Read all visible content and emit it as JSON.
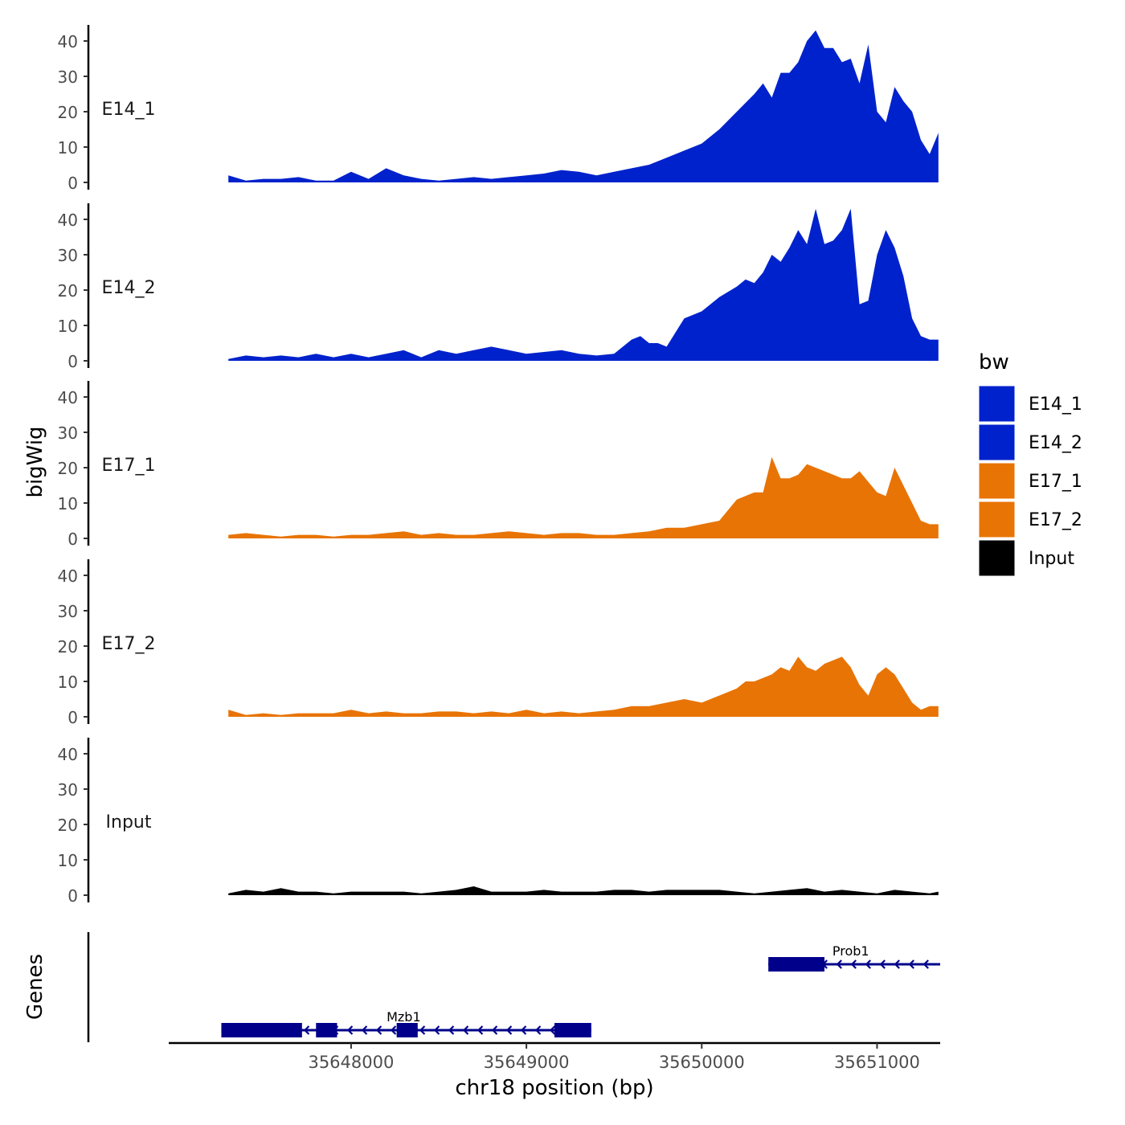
{
  "chart_data": {
    "type": "area",
    "title": "",
    "ylabel": "bigWig",
    "xlabel": "chr18 position (bp)",
    "genes_label": "Genes",
    "xlim": [
      35646960,
      35651360
    ],
    "ylim": [
      0,
      44
    ],
    "yticks": [
      0,
      10,
      20,
      30,
      40
    ],
    "xticks": [
      35648000,
      35649000,
      35650000,
      35651000
    ],
    "xtick_labels": [
      "35648000",
      "35649000",
      "35650000",
      "35651000"
    ],
    "legend": {
      "title": "bw",
      "position": "right",
      "entries": [
        {
          "label": "E14_1",
          "color": "#0022CC"
        },
        {
          "label": "E14_2",
          "color": "#0022CC"
        },
        {
          "label": "E17_1",
          "color": "#E87405"
        },
        {
          "label": "E17_2",
          "color": "#E87405"
        },
        {
          "label": "Input",
          "color": "#000000"
        }
      ]
    },
    "series": [
      {
        "name": "E14_1",
        "color": "#0022CC",
        "x": [
          35647300,
          35647400,
          35647500,
          35647600,
          35647700,
          35647800,
          35647900,
          35648000,
          35648100,
          35648200,
          35648300,
          35648400,
          35648500,
          35648600,
          35648700,
          35648800,
          35648900,
          35649000,
          35649100,
          35649200,
          35649300,
          35649400,
          35649500,
          35649600,
          35649700,
          35649800,
          35649900,
          35650000,
          35650100,
          35650200,
          35650300,
          35650350,
          35650400,
          35650450,
          35650500,
          35650550,
          35650600,
          35650650,
          35650700,
          35650750,
          35650800,
          35650850,
          35650900,
          35650950,
          35651000,
          35651050,
          35651100,
          35651150,
          35651200,
          35651250,
          35651300,
          35651350
        ],
        "values": [
          2,
          0.5,
          1,
          1,
          1.5,
          0.5,
          0.5,
          3,
          1,
          4,
          2,
          1,
          0.5,
          1,
          1.5,
          1,
          1.5,
          2,
          2.5,
          3.5,
          3,
          2,
          3,
          4,
          5,
          7,
          9,
          11,
          15,
          20,
          25,
          28,
          24,
          31,
          31,
          34,
          40,
          43,
          38,
          38,
          34,
          35,
          28,
          39,
          20,
          17,
          27,
          23,
          20,
          12,
          8,
          14
        ]
      },
      {
        "name": "E14_2",
        "color": "#0022CC",
        "x": [
          35647300,
          35647400,
          35647500,
          35647600,
          35647700,
          35647800,
          35647900,
          35648000,
          35648100,
          35648200,
          35648300,
          35648400,
          35648500,
          35648600,
          35648700,
          35648800,
          35648900,
          35649000,
          35649100,
          35649200,
          35649300,
          35649400,
          35649500,
          35649600,
          35649650,
          35649700,
          35649750,
          35649800,
          35649900,
          35650000,
          35650100,
          35650200,
          35650250,
          35650300,
          35650350,
          35650400,
          35650450,
          35650500,
          35650550,
          35650600,
          35650650,
          35650700,
          35650750,
          35650800,
          35650850,
          35650900,
          35650950,
          35651000,
          35651050,
          35651100,
          35651150,
          35651200,
          35651250,
          35651300,
          35651350
        ],
        "values": [
          0.5,
          1.5,
          1,
          1.5,
          1,
          2,
          1,
          2,
          1,
          2,
          3,
          1,
          3,
          2,
          3,
          4,
          3,
          2,
          2.5,
          3,
          2,
          1.5,
          2,
          6,
          7,
          5,
          5,
          4,
          12,
          14,
          18,
          21,
          23,
          22,
          25,
          30,
          28,
          32,
          37,
          33,
          43,
          33,
          34,
          37,
          43,
          16,
          17,
          30,
          37,
          32,
          24,
          12,
          7,
          6,
          6
        ]
      },
      {
        "name": "E17_1",
        "color": "#E87405",
        "x": [
          35647300,
          35647400,
          35647500,
          35647600,
          35647700,
          35647800,
          35647900,
          35648000,
          35648100,
          35648200,
          35648300,
          35648400,
          35648500,
          35648600,
          35648700,
          35648800,
          35648900,
          35649000,
          35649100,
          35649200,
          35649300,
          35649400,
          35649500,
          35649600,
          35649700,
          35649800,
          35649900,
          35650000,
          35650100,
          35650200,
          35650300,
          35650350,
          35650400,
          35650450,
          35650500,
          35650550,
          35650600,
          35650650,
          35650700,
          35650750,
          35650800,
          35650850,
          35650900,
          35650950,
          35651000,
          35651050,
          35651100,
          35651150,
          35651200,
          35651250,
          35651300,
          35651350
        ],
        "values": [
          1,
          1.5,
          1,
          0.5,
          1,
          1,
          0.5,
          1,
          1,
          1.5,
          2,
          1,
          1.5,
          1,
          1,
          1.5,
          2,
          1.5,
          1,
          1.5,
          1.5,
          1,
          1,
          1.5,
          2,
          3,
          3,
          4,
          5,
          11,
          13,
          13,
          23,
          17,
          17,
          18,
          21,
          20,
          19,
          18,
          17,
          17,
          19,
          16,
          13,
          12,
          20,
          15,
          10,
          5,
          4,
          4
        ]
      },
      {
        "name": "E17_2",
        "color": "#E87405",
        "x": [
          35647300,
          35647400,
          35647500,
          35647600,
          35647700,
          35647800,
          35647900,
          35648000,
          35648100,
          35648200,
          35648300,
          35648400,
          35648500,
          35648600,
          35648700,
          35648800,
          35648900,
          35649000,
          35649100,
          35649200,
          35649300,
          35649400,
          35649500,
          35649600,
          35649700,
          35649800,
          35649900,
          35650000,
          35650100,
          35650200,
          35650250,
          35650300,
          35650350,
          35650400,
          35650450,
          35650500,
          35650550,
          35650600,
          35650650,
          35650700,
          35650750,
          35650800,
          35650850,
          35650900,
          35650950,
          35651000,
          35651050,
          35651100,
          35651150,
          35651200,
          35651250,
          35651300,
          35651350
        ],
        "values": [
          2,
          0.5,
          1,
          0.5,
          1,
          1,
          1,
          2,
          1,
          1.5,
          1,
          1,
          1.5,
          1.5,
          1,
          1.5,
          1,
          2,
          1,
          1.5,
          1,
          1.5,
          2,
          3,
          3,
          4,
          5,
          4,
          6,
          8,
          10,
          10,
          11,
          12,
          14,
          13,
          17,
          14,
          13,
          15,
          16,
          17,
          14,
          9,
          6,
          12,
          14,
          12,
          8,
          4,
          2,
          3,
          3
        ]
      },
      {
        "name": "Input",
        "color": "#000000",
        "x": [
          35647300,
          35647400,
          35647500,
          35647600,
          35647700,
          35647800,
          35647900,
          35648000,
          35648100,
          35648200,
          35648300,
          35648400,
          35648500,
          35648600,
          35648700,
          35648800,
          35648900,
          35649000,
          35649100,
          35649200,
          35649300,
          35649400,
          35649500,
          35649600,
          35649700,
          35649800,
          35649900,
          35650000,
          35650100,
          35650200,
          35650300,
          35650400,
          35650500,
          35650600,
          35650700,
          35650800,
          35650900,
          35651000,
          35651100,
          35651200,
          35651300,
          35651350
        ],
        "values": [
          0.5,
          1.5,
          1,
          2,
          1,
          1,
          0.5,
          1,
          1,
          1,
          1,
          0.5,
          1,
          1.5,
          2.5,
          1,
          1,
          1,
          1.5,
          1,
          1,
          1,
          1.5,
          1.5,
          1,
          1.5,
          1.5,
          1.5,
          1.5,
          1,
          0.5,
          1,
          1.5,
          2,
          1,
          1.5,
          1,
          0.5,
          1.5,
          1,
          0.5,
          1
        ]
      }
    ],
    "genes": [
      {
        "name": "Prob1",
        "strand": "-",
        "start": 35650380,
        "end": 35651360,
        "exons": [
          [
            35650380,
            35650700
          ]
        ]
      },
      {
        "name": "Mzb1",
        "strand": "-",
        "start": 35647260,
        "end": 35649370,
        "exons": [
          [
            35647260,
            35647720
          ],
          [
            35647800,
            35647920
          ],
          [
            35648260,
            35648380
          ],
          [
            35649160,
            35649370
          ]
        ]
      }
    ]
  }
}
